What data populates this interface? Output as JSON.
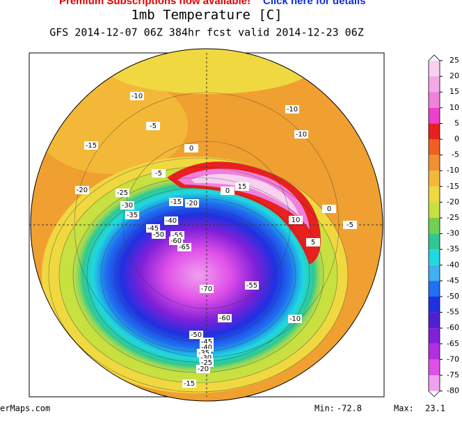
{
  "banner": {
    "text": "Premium Subscriptions now available!",
    "link": "Click here for details"
  },
  "title": "1mb Temperature [C]",
  "subtitle": "GFS 2014-12-07 06Z 384hr fcst valid 2014-12-23 06Z",
  "colorbar": {
    "ticks": [
      25,
      20,
      15,
      10,
      5,
      0,
      -5,
      -10,
      -15,
      -20,
      -25,
      -30,
      -35,
      -40,
      -45,
      -50,
      -55,
      -60,
      -65,
      -70,
      -75,
      -80
    ],
    "colors": [
      "#f8d0f0",
      "#f4a8e6",
      "#f080dc",
      "#ee40cc",
      "#e82020",
      "#f06020",
      "#f09030",
      "#f4b838",
      "#f0d840",
      "#c8e040",
      "#70d050",
      "#30c890",
      "#20d8e0",
      "#40b0f0",
      "#2070f0",
      "#2030e0",
      "#5020d0",
      "#8020d8",
      "#b030e0",
      "#e050e8",
      "#f0a0f0"
    ]
  },
  "contour_labels": [
    -10,
    -10,
    -5,
    -10,
    -15,
    0,
    -5,
    -20,
    -25,
    15,
    0,
    -30,
    -15,
    -20,
    0,
    -35,
    10,
    -5,
    -40,
    -45,
    -50,
    -55,
    -60,
    5,
    -65,
    -70,
    -55,
    -60,
    -10,
    -50,
    -45,
    -40,
    -35,
    -30,
    -25,
    -20,
    -15
  ],
  "footer": {
    "site": "erMaps.com",
    "min_label": "Min:",
    "min": -72.8,
    "max_label": "Max:",
    "max": 23.1
  }
}
